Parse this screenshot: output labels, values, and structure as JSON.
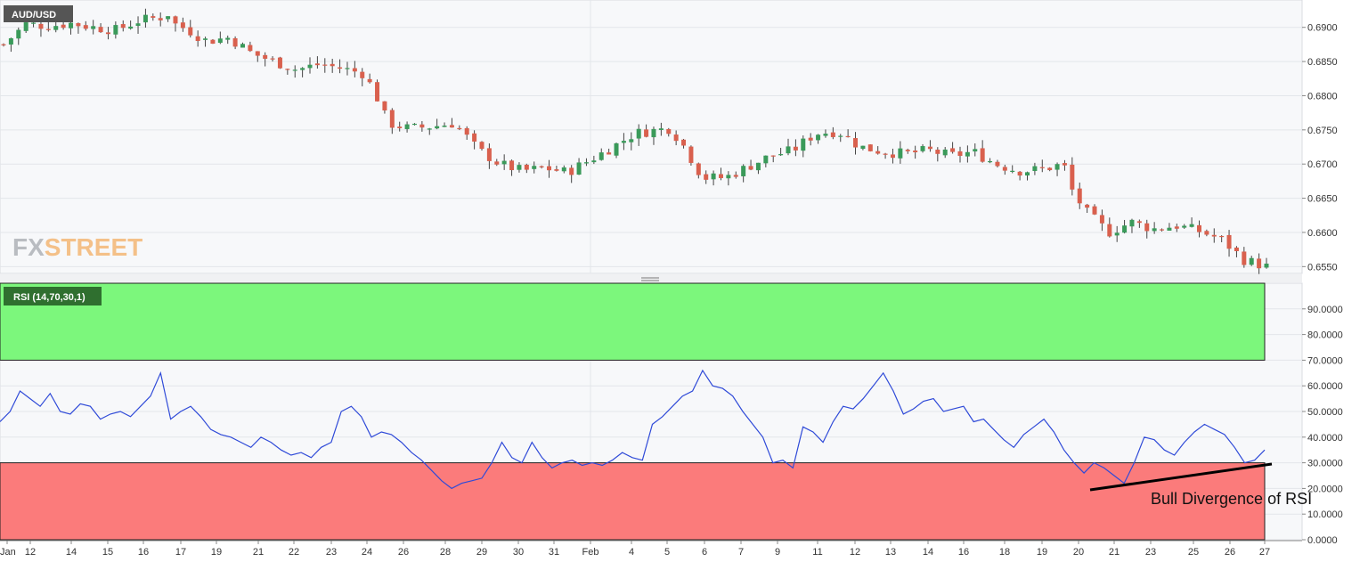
{
  "colors": {
    "background": "#ffffff",
    "plot_background": "#f7f8fa",
    "grid": "#e3e6ea",
    "axis_text": "#333333",
    "bull_candle": "#3a9a5a",
    "bear_candle": "#d9604e",
    "rsi_line": "#2f4ad8",
    "overbought_zone": "#7cf77c",
    "oversold_zone": "#fb7b7b",
    "symbol_badge": "#555555",
    "rsi_badge": "#2f6f2f",
    "logo_fx": "#b9bcc1",
    "logo_street": "#f4c088"
  },
  "logo": {
    "fx": "FX",
    "street": "STREET"
  },
  "price_panel": {
    "symbol": "AUD/USD"
  },
  "rsi_panel": {
    "label": "RSI (14,70,30,1)"
  },
  "annotation": {
    "text": "Bull Divergence  of RSI"
  },
  "x_axis": {
    "labels": [
      "Jan",
      "12",
      "14",
      "15",
      "16",
      "17",
      "19",
      "21",
      "22",
      "23",
      "24",
      "26",
      "28",
      "29",
      "30",
      "31",
      "Feb",
      "4",
      "5",
      "6",
      "7",
      "9",
      "11",
      "12",
      "13",
      "14",
      "16",
      "18",
      "19",
      "20",
      "21",
      "23",
      "25",
      "26",
      "27"
    ]
  },
  "chart_data": [
    {
      "type": "candlestick",
      "title": "AUD/USD",
      "ylim": [
        0.654,
        0.694
      ],
      "y_ticks": [
        "0.6900",
        "0.6850",
        "0.6800",
        "0.6750",
        "0.6700",
        "0.6650",
        "0.6600",
        "0.6550"
      ],
      "price_path": [
        [
          0,
          0.6875
        ],
        [
          1,
          0.6905
        ],
        [
          2,
          0.6902
        ],
        [
          3,
          0.6906
        ],
        [
          4,
          0.69
        ],
        [
          5,
          0.6896
        ],
        [
          6,
          0.691
        ],
        [
          7,
          0.6915
        ],
        [
          7.4,
          0.6922
        ],
        [
          7.7,
          0.6898
        ],
        [
          8,
          0.69
        ],
        [
          9,
          0.688
        ],
        [
          10,
          0.6885
        ],
        [
          11,
          0.6862
        ],
        [
          12,
          0.685
        ],
        [
          13,
          0.6838
        ],
        [
          14,
          0.6846
        ],
        [
          15,
          0.684
        ],
        [
          16,
          0.6832
        ],
        [
          16.8,
          0.6782
        ],
        [
          17,
          0.676
        ],
        [
          18,
          0.6752
        ],
        [
          19,
          0.6755
        ],
        [
          20,
          0.676
        ],
        [
          21,
          0.6722
        ],
        [
          22,
          0.67
        ],
        [
          23,
          0.669
        ],
        [
          24,
          0.6694
        ],
        [
          25,
          0.6688
        ],
        [
          26,
          0.6706
        ],
        [
          27,
          0.6725
        ],
        [
          28,
          0.6745
        ],
        [
          29,
          0.675
        ],
        [
          29.5,
          0.6752
        ],
        [
          30,
          0.6735
        ],
        [
          31,
          0.668
        ],
        [
          32,
          0.668
        ],
        [
          33,
          0.6696
        ],
        [
          34,
          0.6712
        ],
        [
          35,
          0.672
        ],
        [
          36,
          0.6745
        ],
        [
          37,
          0.6748
        ],
        [
          38,
          0.6725
        ],
        [
          39,
          0.6718
        ],
        [
          40,
          0.6715
        ],
        [
          41,
          0.672
        ],
        [
          42,
          0.6712
        ],
        [
          43,
          0.6718
        ],
        [
          44,
          0.67
        ],
        [
          45,
          0.669
        ],
        [
          46,
          0.6692
        ],
        [
          47,
          0.67
        ],
        [
          47.4,
          0.666
        ],
        [
          48,
          0.663
        ],
        [
          49,
          0.66
        ],
        [
          50,
          0.6615
        ],
        [
          51,
          0.6605
        ],
        [
          52,
          0.661
        ],
        [
          53,
          0.6602
        ],
        [
          54,
          0.659
        ],
        [
          55,
          0.656
        ],
        [
          56,
          0.655
        ]
      ]
    },
    {
      "type": "line",
      "title": "RSI (14,70,30,1)",
      "ylim": [
        0,
        100
      ],
      "y_ticks": [
        "90.0000",
        "80.0000",
        "70.0000",
        "60.0000",
        "50.0000",
        "40.0000",
        "30.0000",
        "20.0000",
        "10.0000",
        "0.0000"
      ],
      "levels": {
        "overbought": 70,
        "oversold": 30
      },
      "series": [
        {
          "values": [
            46,
            50,
            58,
            55,
            52,
            57,
            50,
            49,
            53,
            52,
            47,
            49,
            50,
            48,
            52,
            56,
            65,
            47,
            50,
            52,
            48,
            43,
            41,
            40,
            38,
            36,
            40,
            38,
            35,
            33,
            34,
            32,
            36,
            38,
            50,
            52,
            48,
            40,
            42,
            41,
            38,
            34,
            31,
            27,
            23,
            20,
            22,
            23,
            24,
            30,
            38,
            32,
            30,
            38,
            32,
            28,
            30,
            31,
            29,
            30,
            29,
            31,
            34,
            32,
            31,
            45,
            48,
            52,
            56,
            58,
            66,
            60,
            59,
            56,
            50,
            45,
            40,
            30,
            31,
            28,
            44,
            42,
            38,
            46,
            52,
            51,
            55,
            60,
            65,
            58,
            49,
            51,
            54,
            55,
            50,
            51,
            52,
            46,
            47,
            43,
            39,
            36,
            41,
            44,
            47,
            42,
            35,
            30,
            26,
            30,
            28,
            25,
            22,
            30,
            40,
            39,
            35,
            33,
            38,
            42,
            45,
            43,
            41,
            36,
            30,
            31,
            35
          ]
        }
      ]
    }
  ]
}
